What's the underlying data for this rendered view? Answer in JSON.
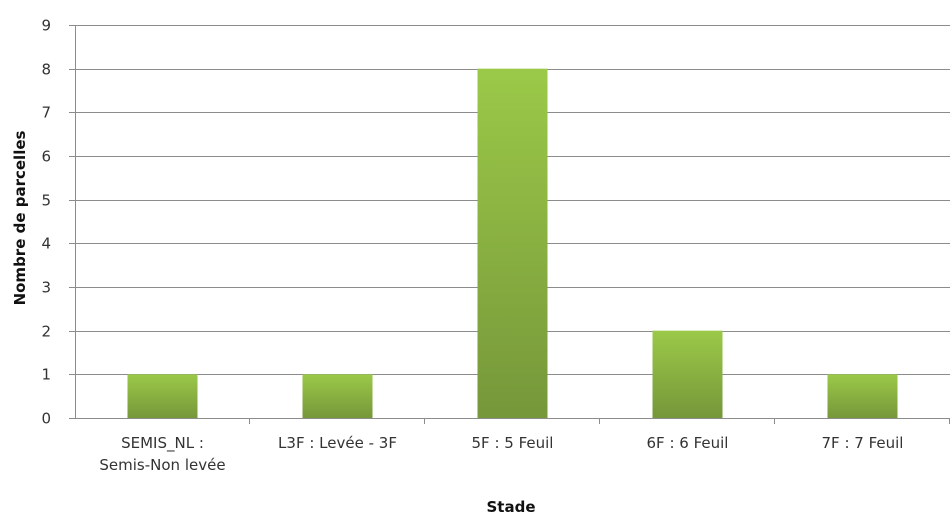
{
  "chart_data": {
    "type": "bar",
    "title": "",
    "xlabel": "Stade",
    "ylabel": "Nombre de parcelles",
    "ylim": [
      0,
      9
    ],
    "yticks": [
      0,
      1,
      2,
      3,
      4,
      5,
      6,
      7,
      8,
      9
    ],
    "grid": true,
    "legend": "none",
    "categories": [
      [
        "SEMIS_NL :",
        "Semis-Non levée"
      ],
      [
        "L3F : Levée - 3F"
      ],
      [
        "5F : 5 Feuil"
      ],
      [
        "6F : 6 Feuil"
      ],
      [
        "7F : 7 Feuil"
      ]
    ],
    "values": [
      1,
      1,
      8,
      2,
      1
    ],
    "colors": {
      "bar_top": "#9BC948",
      "bar_bottom": "#76973A",
      "grid": "#8C8C8C",
      "axis": "#8C8C8C"
    }
  }
}
